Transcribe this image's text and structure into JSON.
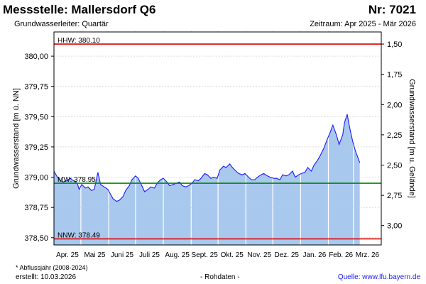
{
  "header": {
    "title": "Messstelle: Mallersdorf Q6",
    "number": "Nr: 7021",
    "subtitle": "Grundwasserleiter: Quartär",
    "period": "Zeitraum: Apr 2025 - Mär 2026"
  },
  "footer": {
    "footnote": "* Abflussjahr (2008-2024)",
    "created": "erstellt:  10.03.2026",
    "rawdata": "- Rohdaten -",
    "source": "Quelle: www.lfu.bayern.de"
  },
  "colors": {
    "fill": "#a9c8ee",
    "line": "#1a1aff",
    "hhw": "#dd0000",
    "nnw": "#dd0000",
    "mw": "#008800",
    "grid": "#c8c8c8",
    "month_divider": "#ffffff"
  },
  "chart_data": {
    "type": "area",
    "ylabel": "Grundwasserstand [m ü. NN]",
    "ylabel_right": "Grundwasserstand [m u. Gelände]",
    "ylim": [
      378.44,
      380.2
    ],
    "y_ticks": [
      "380,00",
      "379,75",
      "379,50",
      "379,25",
      "379,00",
      "378,75",
      "378,50"
    ],
    "y_right_ticks": [
      "1,50",
      "1,75",
      "2,00",
      "2,25",
      "2,50",
      "2,75",
      "3,00"
    ],
    "x_months": [
      "Apr. 25",
      "Mai 25",
      "Juni 25",
      "Juli 25",
      "Aug. 25",
      "Sept. 25",
      "Okt. 25",
      "Nov. 25",
      "Dez. 25",
      "Jan. 26",
      "Feb. 26",
      "Mrz. 26"
    ],
    "grid": true,
    "reference_lines": [
      {
        "label": "HHW: 380.10",
        "value": 380.1
      },
      {
        "label": "MW: 378.95",
        "value": 378.95
      },
      {
        "label": "NNW: 378.49",
        "value": 378.49
      }
    ],
    "x": [
      0,
      3,
      6,
      10,
      14,
      18,
      22,
      26,
      28,
      31,
      35,
      38,
      42,
      45,
      49,
      52,
      56,
      60,
      63,
      66,
      70,
      73,
      77,
      80,
      84,
      87,
      91,
      94,
      98,
      101,
      105,
      108,
      112,
      115,
      119,
      122,
      126,
      129,
      133,
      136,
      140,
      143,
      147,
      150,
      154,
      157,
      161,
      164,
      168,
      171,
      175,
      178,
      182,
      185,
      189,
      192,
      196,
      199,
      203,
      206,
      210,
      213,
      217,
      220,
      224,
      227,
      231,
      234,
      238,
      241,
      245,
      248,
      252,
      255,
      259,
      262,
      266,
      269,
      273,
      276,
      280,
      283,
      287,
      290,
      294,
      297,
      301,
      304,
      308,
      311,
      315,
      318,
      322,
      324,
      327,
      330,
      333,
      336,
      339,
      341
    ],
    "values": [
      379.05,
      379.01,
      378.98,
      378.96,
      378.97,
      378.99,
      378.97,
      378.95,
      378.9,
      378.94,
      378.91,
      378.92,
      378.89,
      378.9,
      379.04,
      378.94,
      378.92,
      378.9,
      378.86,
      378.82,
      378.8,
      378.81,
      378.84,
      378.89,
      378.93,
      378.98,
      379.01,
      378.99,
      378.93,
      378.88,
      378.9,
      378.92,
      378.91,
      378.95,
      378.98,
      378.99,
      378.96,
      378.93,
      378.94,
      378.95,
      378.96,
      378.93,
      378.92,
      378.93,
      378.95,
      378.98,
      378.97,
      378.99,
      379.03,
      379.02,
      378.99,
      379.0,
      378.99,
      379.06,
      379.09,
      379.08,
      379.11,
      379.08,
      379.05,
      379.03,
      379.02,
      379.03,
      379.0,
      378.98,
      378.98,
      379.0,
      379.02,
      379.03,
      379.01,
      379.0,
      378.99,
      378.99,
      378.98,
      379.02,
      379.01,
      379.02,
      379.05,
      379.0,
      379.02,
      379.03,
      379.04,
      379.08,
      379.05,
      379.1,
      379.14,
      379.18,
      379.24,
      379.3,
      379.37,
      379.43,
      379.35,
      379.27,
      379.35,
      379.45,
      379.52,
      379.4,
      379.3,
      379.22,
      379.16,
      379.12
    ]
  }
}
